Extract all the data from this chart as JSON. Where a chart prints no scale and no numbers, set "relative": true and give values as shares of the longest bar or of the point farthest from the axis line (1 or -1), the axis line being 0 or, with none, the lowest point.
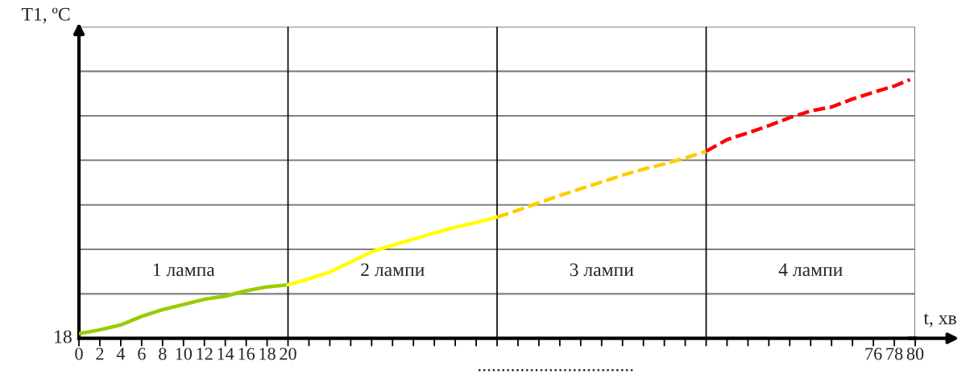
{
  "chart_data": {
    "type": "line",
    "relative": true,
    "ylabel": "T1, ºC",
    "xlabel": "t, хв",
    "xlim": [
      0,
      80
    ],
    "xticks": [
      0,
      2,
      4,
      6,
      8,
      10,
      12,
      14,
      16,
      18,
      20,
      {
        "value": 22,
        "label": null
      },
      {
        "value": 24,
        "label": null
      },
      {
        "value": 26,
        "label": null
      },
      {
        "value": 28,
        "label": null
      },
      {
        "value": 30,
        "label": null
      },
      {
        "value": 32,
        "label": null
      },
      {
        "value": 34,
        "label": null
      },
      {
        "value": 36,
        "label": null
      },
      {
        "value": 38,
        "label": null
      },
      {
        "value": 40,
        "label": null
      },
      {
        "value": 42,
        "label": null
      },
      {
        "value": 44,
        "label": null
      },
      {
        "value": 46,
        "label": null
      },
      {
        "value": 48,
        "label": null
      },
      {
        "value": 50,
        "label": null
      },
      {
        "value": 52,
        "label": null
      },
      {
        "value": 54,
        "label": null
      },
      {
        "value": 56,
        "label": null
      },
      {
        "value": 58,
        "label": null
      },
      {
        "value": 60,
        "label": null
      },
      {
        "value": 62,
        "label": null
      },
      {
        "value": 64,
        "label": null
      },
      {
        "value": 66,
        "label": null
      },
      {
        "value": 68,
        "label": null
      },
      {
        "value": 70,
        "label": null
      },
      {
        "value": 72,
        "label": null
      },
      {
        "value": 74,
        "label": null
      },
      76,
      78,
      80
    ],
    "series": [
      {
        "color": "#99cc00",
        "line_style": "solid",
        "x": [
          0,
          2,
          4,
          6,
          8,
          10,
          12,
          14,
          16,
          18,
          20
        ],
        "values": [
          0.018,
          0.033,
          0.052,
          0.085,
          0.111,
          0.131,
          0.151,
          0.163,
          0.184,
          0.199,
          0.207
        ]
      },
      {
        "color": "#ffff00",
        "line_style": "solid",
        "x": [
          20,
          22,
          24,
          26,
          28,
          30,
          32,
          34,
          36,
          38,
          40
        ],
        "values": [
          0.207,
          0.23,
          0.256,
          0.295,
          0.334,
          0.36,
          0.383,
          0.407,
          0.429,
          0.448,
          0.469
        ]
      },
      {
        "color": "#ffcc00",
        "line_style": "dashed",
        "x": [
          40,
          42,
          44,
          46,
          48,
          50,
          52,
          54,
          56,
          58,
          60
        ],
        "values": [
          0.469,
          0.495,
          0.524,
          0.552,
          0.578,
          0.604,
          0.63,
          0.654,
          0.674,
          0.697,
          0.723
        ]
      },
      {
        "color": "#ff0000",
        "line_style": "dashed",
        "x": [
          60,
          62,
          64,
          66,
          68,
          70,
          72,
          74,
          76,
          78,
          79.5
        ],
        "values": [
          0.723,
          0.768,
          0.794,
          0.822,
          0.853,
          0.879,
          0.894,
          0.925,
          0.951,
          0.975,
          1.0
        ]
      }
    ],
    "ref_lines": [
      {
        "axis": "y",
        "value": 0.172,
        "color": "#808080"
      },
      {
        "axis": "y",
        "value": 0.344,
        "color": "#808080"
      },
      {
        "axis": "y",
        "value": 0.516,
        "color": "#808080"
      },
      {
        "axis": "y",
        "value": 0.688,
        "color": "#808080"
      },
      {
        "axis": "y",
        "value": 0.86,
        "color": "#808080"
      },
      {
        "axis": "y",
        "value": 1.032,
        "color": "#808080"
      },
      {
        "axis": "y",
        "value": 1.204,
        "color": "#808080"
      },
      {
        "axis": "x",
        "value": 20,
        "color": "#000000"
      },
      {
        "axis": "x",
        "value": 40,
        "color": "#000000"
      },
      {
        "axis": "x",
        "value": 60,
        "color": "#000000"
      },
      {
        "axis": "x",
        "value": 80,
        "color": "#808080"
      }
    ],
    "annotations": [
      "18",
      ".................................",
      "1 лампа",
      "2 лампи",
      "3 лампи",
      "4 лампи"
    ]
  }
}
